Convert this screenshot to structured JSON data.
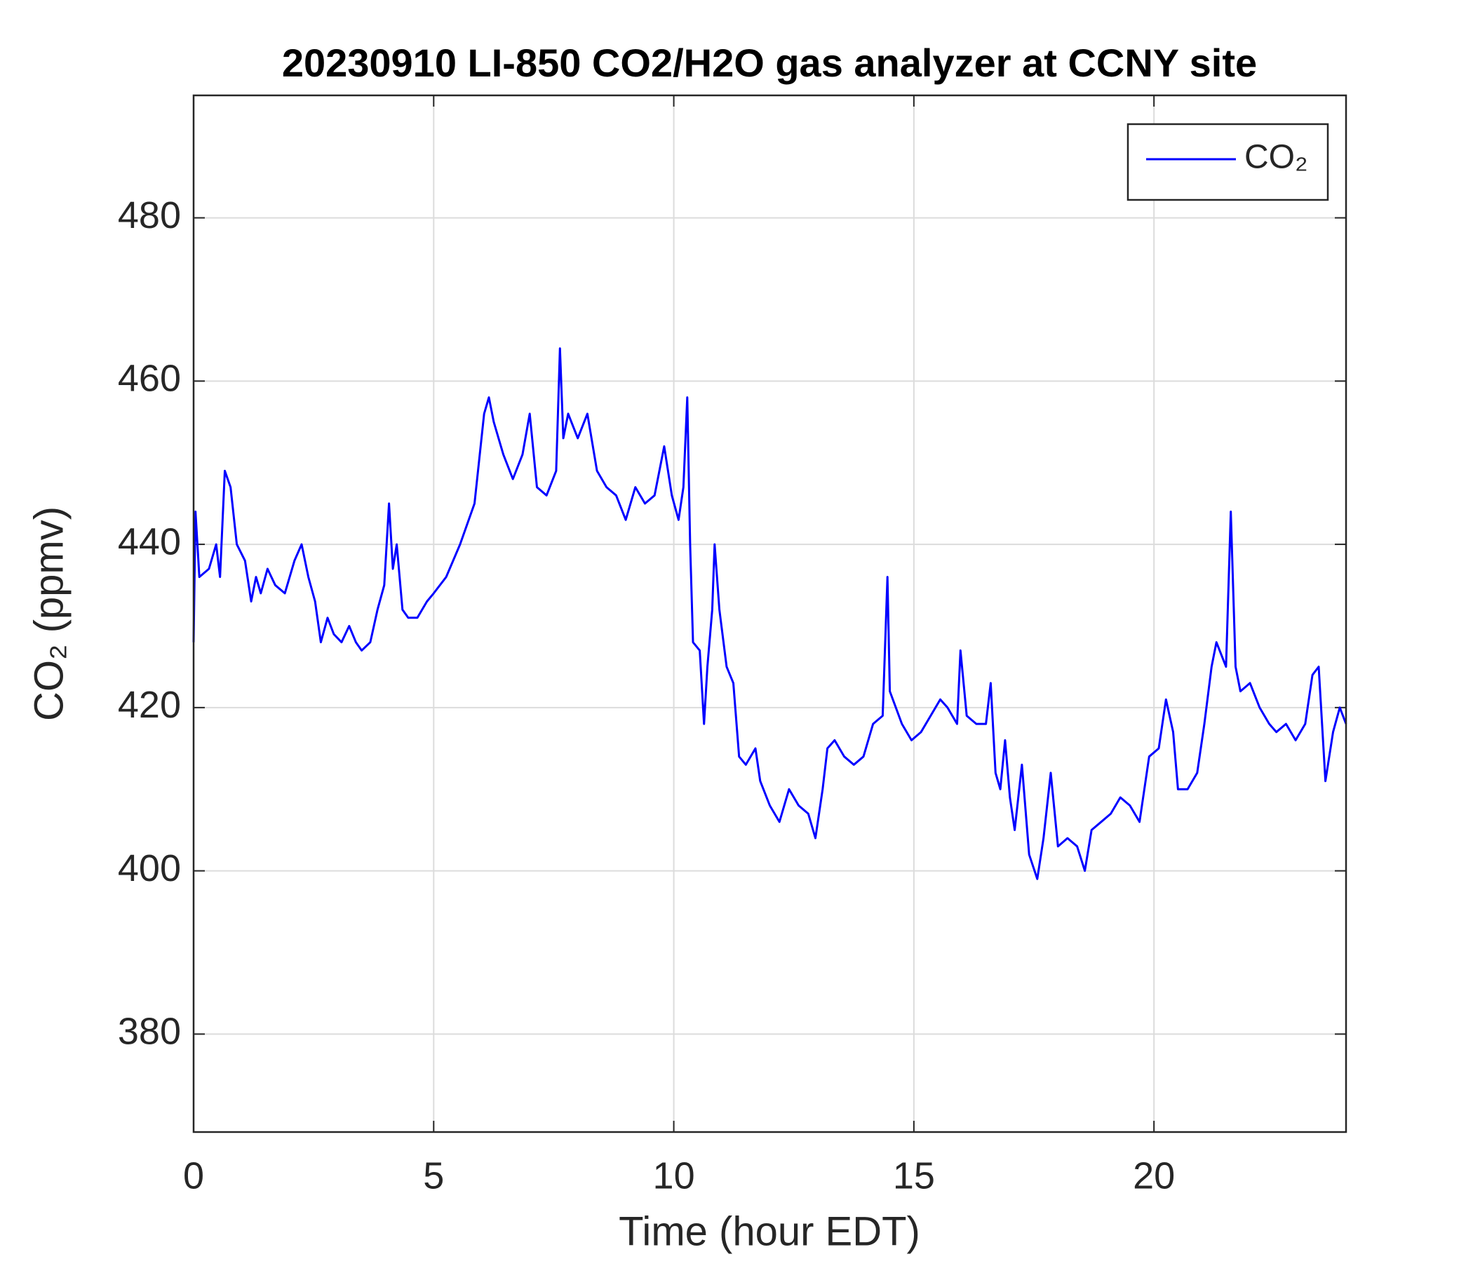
{
  "chart_data": {
    "type": "line",
    "title": "20230910 LI-850 CO2/H2O gas analyzer at CCNY site",
    "x_label": "Time (hour EDT)",
    "y_label": "CO₂ (ppmv)",
    "xlim": [
      0,
      24
    ],
    "xticks": [
      0,
      5,
      10,
      15,
      20
    ],
    "ylim": [
      368,
      495
    ],
    "yticks": [
      380,
      400,
      420,
      440,
      460,
      480
    ],
    "grid": true,
    "legend": "upper right",
    "x": [
      0,
      0.04,
      0.12,
      0.32,
      0.47,
      0.55,
      0.65,
      0.77,
      0.9,
      1.07,
      1.2,
      1.3,
      1.4,
      1.54,
      1.7,
      1.9,
      2.1,
      2.25,
      2.39,
      2.53,
      2.65,
      2.79,
      2.92,
      3.08,
      3.24,
      3.38,
      3.5,
      3.68,
      3.83,
      3.97,
      4.07,
      4.15,
      4.23,
      4.35,
      4.47,
      4.66,
      4.86,
      5.0,
      5.26,
      5.55,
      5.85,
      6.05,
      6.15,
      6.25,
      6.45,
      6.65,
      6.85,
      7.0,
      7.15,
      7.35,
      7.55,
      7.63,
      7.7,
      7.8,
      8.0,
      8.2,
      8.4,
      8.6,
      8.8,
      9.0,
      9.2,
      9.4,
      9.6,
      9.8,
      9.96,
      10.1,
      10.2,
      10.28,
      10.34,
      10.4,
      10.54,
      10.63,
      10.7,
      10.8,
      10.85,
      10.95,
      11.1,
      11.24,
      11.36,
      11.5,
      11.7,
      11.8,
      12.0,
      12.2,
      12.4,
      12.6,
      12.8,
      12.95,
      13.1,
      13.2,
      13.35,
      13.55,
      13.75,
      13.95,
      14.15,
      14.35,
      14.45,
      14.5,
      14.75,
      14.95,
      15.15,
      15.35,
      15.55,
      15.7,
      15.9,
      15.97,
      16.1,
      16.3,
      16.5,
      16.6,
      16.7,
      16.8,
      16.9,
      17.0,
      17.1,
      17.25,
      17.4,
      17.57,
      17.7,
      17.85,
      18.0,
      18.2,
      18.4,
      18.56,
      18.7,
      18.9,
      19.1,
      19.3,
      19.5,
      19.7,
      19.9,
      20.1,
      20.25,
      20.4,
      20.5,
      20.7,
      20.9,
      21.05,
      21.2,
      21.3,
      21.5,
      21.6,
      21.7,
      21.8,
      22.0,
      22.2,
      22.4,
      22.55,
      22.75,
      22.95,
      23.15,
      23.3,
      23.43,
      23.57,
      23.73,
      23.87,
      24.0
    ],
    "series": [
      {
        "name": "CO₂",
        "color": "#0000ff",
        "values": [
          428,
          444,
          436,
          437,
          440,
          436,
          449,
          447,
          440,
          438,
          433,
          436,
          434,
          437,
          435,
          434,
          438,
          440,
          436,
          433,
          428,
          431,
          429,
          428,
          430,
          428,
          427,
          428,
          432,
          435,
          445,
          437,
          440,
          432,
          431,
          431,
          433,
          434,
          436,
          440,
          445,
          456,
          458,
          455,
          451,
          448,
          451,
          456,
          447,
          446,
          449,
          464,
          453,
          456,
          453,
          456,
          449,
          447,
          446,
          443,
          447,
          445,
          446,
          452,
          446,
          443,
          447,
          458,
          440,
          428,
          427,
          418,
          425,
          432,
          440,
          432,
          425,
          423,
          414,
          413,
          415,
          411,
          408,
          406,
          410,
          408,
          407,
          404,
          410,
          415,
          416,
          414,
          413,
          414,
          418,
          419,
          436,
          422,
          418,
          416,
          417,
          419,
          421,
          420,
          418,
          427,
          419,
          418,
          418,
          423,
          412,
          410,
          416,
          409,
          405,
          413,
          402,
          399,
          404,
          412,
          403,
          404,
          403,
          400,
          405,
          406,
          407,
          409,
          408,
          406,
          414,
          415,
          421,
          417,
          410,
          410,
          412,
          418,
          425,
          428,
          425,
          444,
          425,
          422,
          423,
          420,
          418,
          417,
          418,
          416,
          418,
          424,
          425,
          411,
          417,
          420,
          418
        ]
      }
    ]
  }
}
